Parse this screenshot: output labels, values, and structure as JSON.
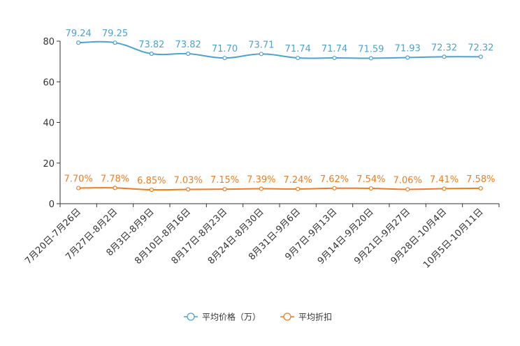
{
  "chart_data": {
    "type": "line",
    "categories": [
      "7月20日-7月26日",
      "7月27日-8月2日",
      "8月3日-8月9日",
      "8月10日-8月16日",
      "8月17日-8月23日",
      "8月24日-8月30日",
      "8月31日-9月6日",
      "9月7日-9月13日",
      "9月14日-9月20日",
      "9月21日-9月27日",
      "9月28日-10月4日",
      "10月5日-10月11日"
    ],
    "ylim": [
      0,
      80
    ],
    "yticks": [
      0,
      20,
      40,
      60,
      80
    ],
    "series": [
      {
        "name": "平均价格（万）",
        "color": "#4aa3d1",
        "values": [
          79.24,
          79.25,
          73.82,
          73.82,
          71.7,
          73.71,
          71.74,
          71.74,
          71.59,
          71.93,
          72.32,
          72.32
        ],
        "labels": [
          "79.24",
          "79.25",
          "73.82",
          "73.82",
          "71.70",
          "73.71",
          "71.74",
          "71.74",
          "71.59",
          "71.93",
          "72.32",
          "72.32"
        ]
      },
      {
        "name": "平均折扣",
        "color": "#f07c1d",
        "values": [
          7.7,
          7.78,
          6.85,
          7.03,
          7.15,
          7.39,
          7.24,
          7.62,
          7.54,
          7.06,
          7.41,
          7.58
        ],
        "labels": [
          "7.70%",
          "7.78%",
          "6.85%",
          "7.03%",
          "7.15%",
          "7.39%",
          "7.24%",
          "7.62%",
          "7.54%",
          "7.06%",
          "7.41%",
          "7.58%"
        ]
      }
    ],
    "legend_position": "bottom-center"
  }
}
